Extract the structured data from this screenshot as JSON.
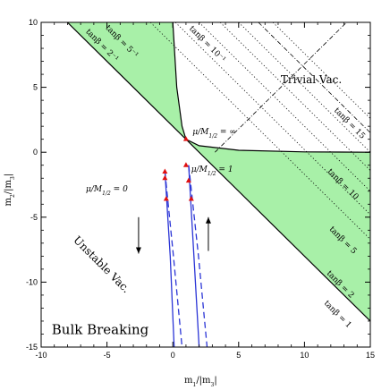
{
  "chart_data": {
    "type": "line",
    "xlabel_main": "m",
    "xlabel_sup": "2",
    "xlabel_sub": "1",
    "xlabel_mid": "/|m",
    "xlabel_sup2": "2",
    "xlabel_sub2": "3",
    "xlabel_end": "|",
    "ylabel_main": "m",
    "ylabel_sup": "2",
    "ylabel_sub": "2",
    "ylabel_mid": "/|m",
    "ylabel_sup2": "2",
    "ylabel_sub2": "3",
    "ylabel_end": "|",
    "xlim": [
      -10,
      15
    ],
    "ylim": [
      -15,
      10
    ],
    "xticks": [
      "-10",
      "-5",
      "0",
      "5",
      "10",
      "15"
    ],
    "yticks": [
      "10",
      "5",
      "0",
      "-5",
      "-10",
      "-15"
    ],
    "annotations": {
      "trivial_vac": "Trivial Vac.",
      "unstable_vac": "Unstable Vac.",
      "bulk_breaking": "Bulk Breaking",
      "mu_inf": "μ/M",
      "mu_inf_sub": "1/2",
      "mu_inf_val": " = ∞",
      "mu_1": "μ/M",
      "mu_1_sub": "1/2",
      "mu_1_val": " = 1",
      "mu_0": "μ/M",
      "mu_0_sub": "1/2",
      "mu_0_val": " = 0"
    },
    "tanbeta_labels": [
      {
        "text": "tanβ = 5⁻¹",
        "x": -4.0,
        "y": 8.4
      },
      {
        "text": "tanβ = 2⁻¹",
        "x": -5.5,
        "y": 8.1
      },
      {
        "text": "tanβ = 10⁻¹",
        "x": 2.5,
        "y": 8.2
      },
      {
        "text": "tanβ = 15",
        "x": 13.3,
        "y": 2.1
      },
      {
        "text": "tanβ = 10",
        "x": 12.8,
        "y": -2.6
      },
      {
        "text": "tanβ = 5",
        "x": 12.8,
        "y": -6.9
      },
      {
        "text": "tanβ = 2",
        "x": 12.6,
        "y": -10.3
      },
      {
        "text": "tanβ = 1",
        "x": 12.4,
        "y": -12.6
      }
    ],
    "colors": {
      "region_fill": "#a8f0a8",
      "curve_blue": "#2b35d6",
      "marker_red": "#e01010"
    },
    "region_upper": [
      [
        -8,
        10
      ],
      [
        -2.5,
        10
      ],
      [
        0,
        5
      ],
      [
        0.5,
        2.5
      ],
      [
        0.8,
        1.3
      ],
      [
        1,
        1
      ]
    ],
    "region_lower": [
      [
        1,
        1
      ],
      [
        2,
        0.5
      ],
      [
        5,
        0.15
      ],
      [
        10,
        0.03
      ],
      [
        15,
        0
      ],
      [
        15,
        -13
      ]
    ],
    "boundary_line": [
      [
        -8,
        10
      ],
      [
        15,
        -13
      ]
    ],
    "dotted_lines": [
      {
        "name": "tanβ=10⁻¹",
        "points": [
          [
            -1.7,
            10
          ],
          [
            15,
            -6.7
          ]
        ],
        "style": "dotted"
      },
      {
        "name": "tanβ=15",
        "points": [
          [
            7.6,
            10
          ],
          [
            15,
            2.6
          ]
        ],
        "style": "dotted"
      },
      {
        "name": "tanβ=2",
        "points": [
          [
            3.6,
            10
          ],
          [
            15,
            -1.4
          ]
        ],
        "style": "dotted"
      },
      {
        "name": "tanβ=5⁻¹",
        "points": [
          [
            3.2,
            0.0
          ],
          [
            13.2,
            10
          ]
        ],
        "style": "dashdot"
      }
    ],
    "crossing_line": {
      "points": [
        [
          6.5,
          10
        ],
        [
          15,
          1.5
        ]
      ],
      "style": "dashdot"
    },
    "curves": [
      {
        "name": "μ/M1/2 = 0",
        "solid": [
          [
            -0.6,
            -1.5
          ],
          [
            -0.2,
            -8
          ],
          [
            0.1,
            -15
          ]
        ],
        "dashed": [
          [
            -0.6,
            -1.5
          ],
          [
            0.05,
            -8
          ],
          [
            0.7,
            -15
          ]
        ]
      },
      {
        "name": "μ/M1/2 = 1",
        "solid": [
          [
            1.2,
            -1.0
          ],
          [
            1.6,
            -8
          ],
          [
            2.0,
            -15
          ]
        ],
        "dashed": [
          [
            1.2,
            -1.0
          ],
          [
            1.95,
            -8
          ],
          [
            2.6,
            -15
          ]
        ]
      }
    ],
    "markers": [
      [
        1.0,
        1.0
      ],
      [
        1.0,
        -1.0
      ],
      [
        1.2,
        -2.2
      ],
      [
        1.4,
        -3.6
      ],
      [
        -0.6,
        -1.5
      ],
      [
        -0.6,
        -2.0
      ],
      [
        -0.5,
        -3.6
      ]
    ],
    "arrows": [
      {
        "dir": "down",
        "x": -2.6,
        "from": -5.0,
        "to": -7.8
      },
      {
        "dir": "up",
        "x": 2.7,
        "from": -7.6,
        "to": -5.0
      }
    ],
    "solid_curve_upper": [
      [
        0,
        10
      ],
      [
        0.3,
        5
      ],
      [
        0.7,
        2
      ],
      [
        1,
        1
      ]
    ]
  }
}
